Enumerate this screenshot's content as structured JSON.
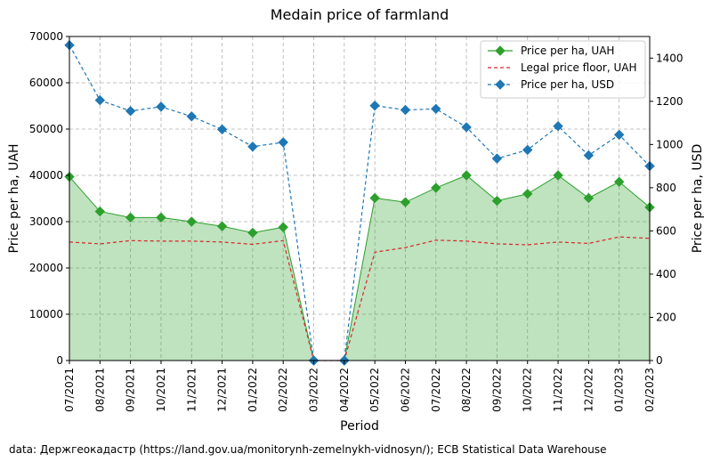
{
  "chart_data": {
    "type": "line",
    "title": "Medain price of farmland",
    "xlabel": "Period",
    "ylabel": "Price per ha, UAH",
    "ylabel_right": "Price per ha, USD",
    "categories": [
      "07/2021",
      "08/2021",
      "09/2021",
      "10/2021",
      "11/2021",
      "12/2021",
      "01/2022",
      "02/2022",
      "03/2022",
      "04/2022",
      "05/2022",
      "06/2022",
      "07/2022",
      "08/2022",
      "09/2022",
      "10/2022",
      "11/2022",
      "12/2022",
      "01/2023",
      "02/2023"
    ],
    "ylim": [
      0,
      70000
    ],
    "yticks": [
      0,
      10000,
      20000,
      30000,
      40000,
      50000,
      60000,
      70000
    ],
    "ylim_right": [
      0,
      1500
    ],
    "yticks_right": [
      0,
      200,
      400,
      600,
      800,
      1000,
      1200,
      1400
    ],
    "grid": true,
    "legend_position": "top-right",
    "series": [
      {
        "name": "Price per ha, UAH",
        "axis": "left",
        "style": "solid-diamond-filled",
        "color": "#2ca02c",
        "values": [
          39700,
          32200,
          30900,
          30900,
          30000,
          29000,
          27600,
          28800,
          0,
          0,
          35100,
          34200,
          37300,
          40000,
          34500,
          36000,
          40000,
          35100,
          38600,
          33100
        ]
      },
      {
        "name": "Legal price floor, UAH",
        "axis": "left",
        "style": "dashed",
        "color": "#d62728",
        "values": [
          25600,
          25200,
          25900,
          25800,
          25800,
          25600,
          25100,
          25900,
          0,
          0,
          23400,
          24400,
          26000,
          25800,
          25200,
          25000,
          25600,
          25300,
          26700,
          26400
        ]
      },
      {
        "name": "Price per ha, USD",
        "axis": "right",
        "style": "dashed-diamond",
        "color": "#1f77b4",
        "values": [
          1460,
          1205,
          1155,
          1175,
          1130,
          1070,
          990,
          1010,
          0,
          0,
          1180,
          1160,
          1165,
          1080,
          935,
          975,
          1085,
          950,
          1045,
          900
        ]
      }
    ]
  },
  "source_note": "data: Держгеокадастр (https://land.gov.ua/monitorynh-zemelnykh-vidnosyn/); ECB Statistical Data Warehouse"
}
